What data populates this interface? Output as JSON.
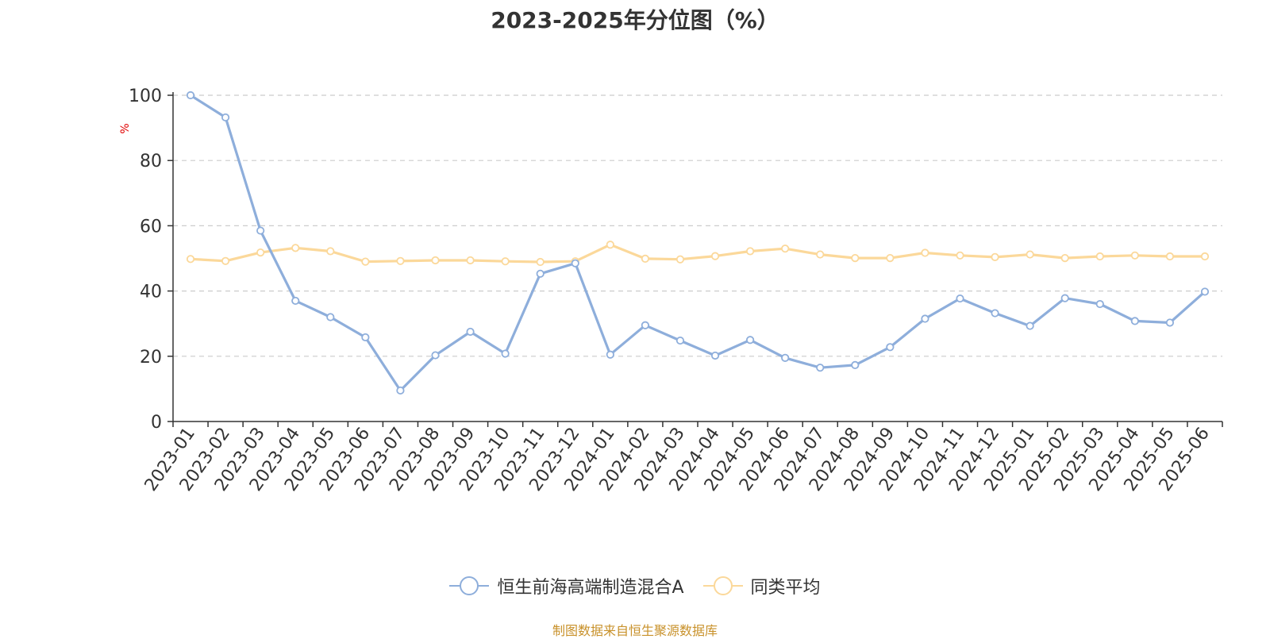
{
  "chart_data": {
    "type": "line",
    "title": "2023-2025年分位图（%）",
    "ylabel": "%",
    "ylim": [
      0,
      100
    ],
    "yticks": [
      0,
      20,
      40,
      60,
      80,
      100
    ],
    "grid": true,
    "legend_position": "bottom",
    "categories": [
      "2023-01",
      "2023-02",
      "2023-03",
      "2023-04",
      "2023-05",
      "2023-06",
      "2023-07",
      "2023-08",
      "2023-09",
      "2023-10",
      "2023-11",
      "2023-12",
      "2024-01",
      "2024-02",
      "2024-03",
      "2024-04",
      "2024-05",
      "2024-06",
      "2024-07",
      "2024-08",
      "2024-09",
      "2024-10",
      "2024-11",
      "2024-12",
      "2025-01",
      "2025-02",
      "2025-03",
      "2025-04",
      "2025-05",
      "2025-06"
    ],
    "series": [
      {
        "name": "恒生前海高端制造混合A",
        "color": "#8eaedb",
        "values": [
          100,
          93.2,
          58.5,
          37.0,
          32.0,
          25.8,
          9.5,
          20.3,
          27.5,
          20.8,
          45.3,
          48.5,
          20.5,
          29.5,
          24.8,
          20.2,
          25.0,
          19.5,
          16.5,
          17.3,
          22.8,
          31.5,
          37.7,
          33.2,
          29.3,
          37.8,
          36.0,
          30.8,
          30.3,
          39.8
        ]
      },
      {
        "name": "同类平均",
        "color": "#fbd89a",
        "values": [
          49.8,
          49.2,
          51.8,
          53.2,
          52.2,
          49.0,
          49.2,
          49.4,
          49.4,
          49.1,
          48.9,
          49.1,
          54.2,
          49.9,
          49.7,
          50.7,
          52.2,
          53.0,
          51.2,
          50.1,
          50.1,
          51.7,
          50.9,
          50.4,
          51.2,
          50.1,
          50.6,
          50.9,
          50.6,
          50.6
        ]
      }
    ]
  },
  "source_text": "制图数据来自恒生聚源数据库",
  "colors": {
    "axis": "#333333",
    "grid": "#cccccc",
    "source": "#c8912a",
    "ylabel": "#e00000"
  }
}
